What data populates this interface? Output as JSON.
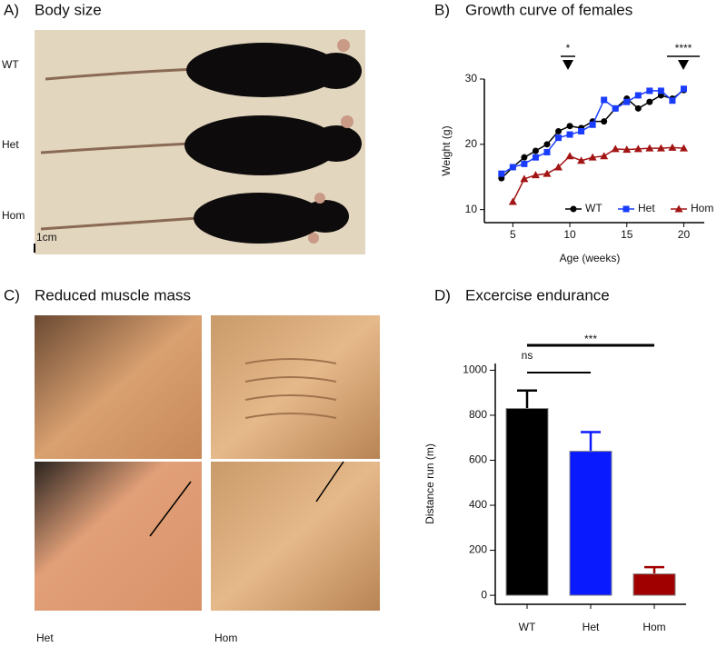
{
  "panel_a": {
    "letter": "A)",
    "title": "Body size",
    "labels": [
      "WT",
      "Het",
      "Hom"
    ],
    "scale_bar": "1cm"
  },
  "panel_b": {
    "letter": "B)"
  },
  "panel_c": {
    "letter": "C)",
    "title": "Reduced muscle mass",
    "labels": [
      "Het",
      "Hom"
    ]
  },
  "panel_d": {
    "letter": "D)"
  },
  "chart_data": [
    {
      "type": "line",
      "title": "Growth curve of females",
      "x_label": "Age (weeks)",
      "y_label": "Weight (g)",
      "x": [
        4,
        5,
        6,
        7,
        8,
        9,
        10,
        11,
        12,
        13,
        14,
        15,
        16,
        17,
        18,
        19,
        20
      ],
      "series": [
        {
          "name": "WT",
          "color": "#000000",
          "marker": "circle",
          "values": [
            14.8,
            16.5,
            18,
            19,
            20,
            22,
            22.8,
            22.5,
            23.5,
            23.5,
            25.5,
            27,
            25.5,
            26.5,
            27.5,
            27,
            28.3
          ]
        },
        {
          "name": "Het",
          "color": "#1a3cff",
          "marker": "square",
          "values": [
            15.5,
            16.5,
            17,
            18,
            18.8,
            21,
            21.5,
            22,
            23,
            26.8,
            25.5,
            26.5,
            27.5,
            28.2,
            28.2,
            26.7,
            28.5
          ]
        },
        {
          "name": "Hom",
          "color": "#a31515",
          "marker": "triangle",
          "values": [
            null,
            11.2,
            14.7,
            15.3,
            15.5,
            16.5,
            18.2,
            17.5,
            18,
            18.2,
            19.3,
            19.2,
            19.3,
            19.4,
            19.4,
            19.5,
            19.4
          ]
        }
      ],
      "xlim": [
        2.5,
        21
      ],
      "xticks": [
        5,
        10,
        15,
        20
      ],
      "ylim": [
        8,
        30
      ],
      "yticks": [
        10,
        20,
        30
      ],
      "legend": "lower right",
      "annotations": [
        "*",
        "****"
      ]
    },
    {
      "type": "bar",
      "title": "Excercise endurance",
      "y_label": "Distance run (m)",
      "categories": [
        "WT",
        "Het",
        "Hom"
      ],
      "values": [
        830,
        640,
        95
      ],
      "errors": [
        80,
        85,
        30
      ],
      "colors": [
        "#000000",
        "#0a1aff",
        "#a00000"
      ],
      "ylim": [
        -40,
        1030
      ],
      "yticks": [
        0,
        200,
        400,
        600,
        800,
        1000
      ],
      "annotations": [
        "ns",
        "***"
      ]
    }
  ]
}
